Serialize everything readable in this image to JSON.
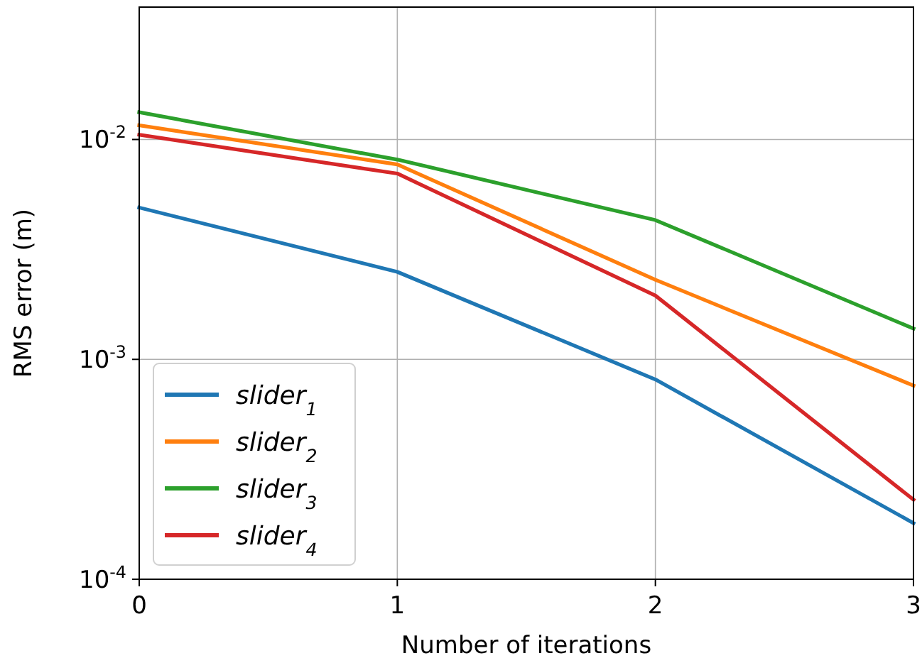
{
  "chart_data": {
    "type": "line",
    "xlabel": "Number of iterations",
    "ylabel": "RMS error (m)",
    "x": [
      0,
      1,
      2,
      3
    ],
    "series": [
      {
        "name": "slider$_{1}$",
        "color": "#1f77b4",
        "values": [
          0.0049,
          0.0025,
          0.00081,
          0.00018
        ]
      },
      {
        "name": "slider$_{2}$",
        "color": "#ff7f0e",
        "values": [
          0.0116,
          0.0077,
          0.0023,
          0.00076
        ]
      },
      {
        "name": "slider$_{3}$",
        "color": "#2ca02c",
        "values": [
          0.0133,
          0.0081,
          0.0043,
          0.00138
        ]
      },
      {
        "name": "slider$_{4}$",
        "color": "#d62728",
        "values": [
          0.0105,
          0.007,
          0.00195,
          0.00023
        ]
      }
    ],
    "log": "y",
    "xlim": [
      0,
      3
    ],
    "xticks": [
      0,
      1,
      2,
      3
    ],
    "ylim": [
      0.0001,
      0.04
    ],
    "yticks": [
      {
        "value": 0.0001,
        "label": "10$^{-4}$"
      },
      {
        "value": 0.001,
        "label": "10$^{-3}$"
      },
      {
        "value": 0.01,
        "label": "10$^{-2}$"
      }
    ],
    "grid": true,
    "legend": "bottom left",
    "marker": "none",
    "line_style": "solid"
  }
}
